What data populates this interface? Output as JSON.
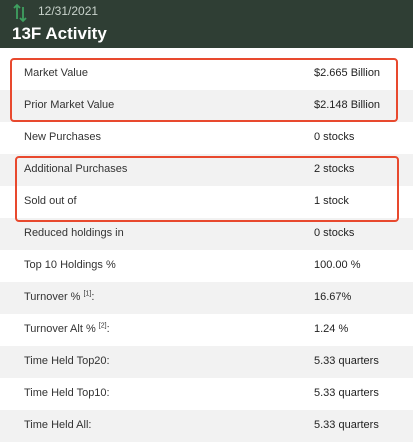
{
  "header": {
    "date": "12/31/2021",
    "title": "13F Activity",
    "icon": "sort-arrows-icon"
  },
  "rows": [
    {
      "label": "Market Value",
      "value": "$2.665 Billion"
    },
    {
      "label": "Prior Market Value",
      "value": "$2.148 Billion"
    },
    {
      "label": "New Purchases",
      "value": "0 stocks"
    },
    {
      "label": "Additional Purchases",
      "value": "2 stocks"
    },
    {
      "label": "Sold out of",
      "value": "1 stock"
    },
    {
      "label": "Reduced holdings in",
      "value": "0 stocks"
    },
    {
      "label": "Top 10 Holdings %",
      "value": "100.00 %"
    },
    {
      "label": "Turnover %",
      "footnote": "[1]",
      "suffix": ":",
      "value": "16.67%"
    },
    {
      "label": "Turnover Alt %",
      "footnote": "[2]",
      "suffix": ":",
      "value": "1.24 %"
    },
    {
      "label": "Time Held Top20:",
      "value": "5.33 quarters"
    },
    {
      "label": "Time Held Top10:",
      "value": "5.33 quarters"
    },
    {
      "label": "Time Held All:",
      "value": "5.33 quarters"
    }
  ],
  "colors": {
    "header_bg": "#2f3e34",
    "highlight_border": "#e8492e",
    "icon_green": "#3fa060"
  }
}
